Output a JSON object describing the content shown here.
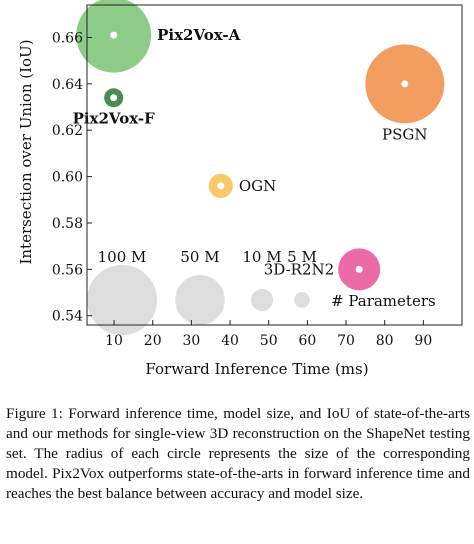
{
  "chart_data": {
    "type": "scatter",
    "xlabel": "Forward Inference Time (ms)",
    "ylabel": "Intersection over Union (IoU)",
    "xlim": [
      3,
      100
    ],
    "ylim": [
      0.536,
      0.674
    ],
    "xticks": [
      10,
      20,
      30,
      40,
      50,
      60,
      70,
      80,
      90
    ],
    "yticks": [
      0.54,
      0.56,
      0.58,
      0.6,
      0.62,
      0.64,
      0.66
    ],
    "size_unit": "model parameters (M)",
    "points": [
      {
        "name": "Pix2Vox-A",
        "x": 9.9,
        "y": 0.661,
        "params_m": 114.4,
        "color": "#7cc576",
        "label_side": "right"
      },
      {
        "name": "Pix2Vox-F",
        "x": 9.9,
        "y": 0.634,
        "params_m": 7.4,
        "color": "#2f7d32",
        "label_side": "below"
      },
      {
        "name": "OGN",
        "x": 37.6,
        "y": 0.596,
        "params_m": 12.0,
        "color": "#f7c155",
        "label_side": "right"
      },
      {
        "name": "3D-R2N2",
        "x": 73.4,
        "y": 0.56,
        "params_m": 35.97,
        "color": "#e9559b",
        "label_side": "left"
      },
      {
        "name": "PSGN",
        "x": 85.2,
        "y": 0.64,
        "params_m": 127.0,
        "color": "#f2904a",
        "label_side": "below"
      }
    ],
    "size_legend": {
      "title": "# Parameters",
      "items": [
        {
          "label": "100 M",
          "params_m": 100
        },
        {
          "label": "50 M",
          "params_m": 50
        },
        {
          "label": "10 M",
          "params_m": 10
        },
        {
          "label": "5 M",
          "params_m": 5
        }
      ],
      "color": "#d9d9d9"
    }
  },
  "caption": "Figure 1: Forward inference time, model size, and IoU of state-of-the-arts and our methods for single-view 3D reconstruction on the ShapeNet testing set. The radius of each circle represents the size of the corresponding model. Pix2Vox outperforms state-of-the-arts in forward inference time and reaches the best balance between accuracy and model size."
}
